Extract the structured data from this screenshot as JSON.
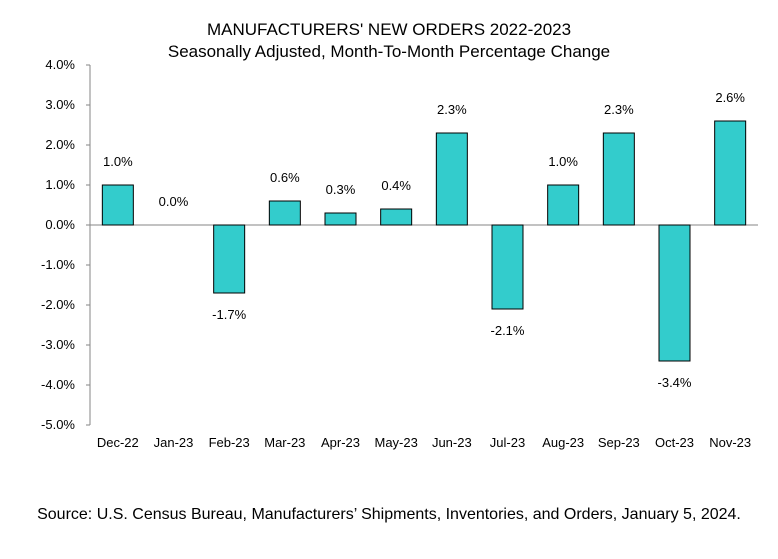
{
  "chart_data": {
    "type": "bar",
    "title": "MANUFACTURERS' NEW ORDERS 2022-2023",
    "subtitle": "Seasonally Adjusted,  Month-To-Month Percentage Change",
    "categories": [
      "Dec-22",
      "Jan-23",
      "Feb-23",
      "Mar-23",
      "Apr-23",
      "May-23",
      "Jun-23",
      "Jul-23",
      "Aug-23",
      "Sep-23",
      "Oct-23",
      "Nov-23"
    ],
    "values": [
      1.0,
      0.0,
      -1.7,
      0.6,
      0.3,
      0.4,
      2.3,
      -2.1,
      1.0,
      2.3,
      -3.4,
      2.6
    ],
    "data_labels": [
      "1.0%",
      "0.0%",
      "-1.7%",
      "0.6%",
      "0.3%",
      "0.4%",
      "2.3%",
      "-2.1%",
      "1.0%",
      "2.3%",
      "-3.4%",
      "2.6%"
    ],
    "ylim": [
      -5.0,
      4.0
    ],
    "yticks": [
      4.0,
      3.0,
      2.0,
      1.0,
      0.0,
      -1.0,
      -2.0,
      -3.0,
      -4.0,
      -5.0
    ],
    "ytick_labels": [
      "4.0%",
      "3.0%",
      "2.0%",
      "1.0%",
      "0.0%",
      "-1.0%",
      "-2.0%",
      "-3.0%",
      "-4.0%",
      "-5.0%"
    ],
    "xlabel": "",
    "ylabel": "",
    "grid": false,
    "bar_color": "#33CCCC",
    "source": "Source: U.S. Census Bureau, Manufacturers’ Shipments, Inventories, and Orders, January 5, 2024."
  }
}
